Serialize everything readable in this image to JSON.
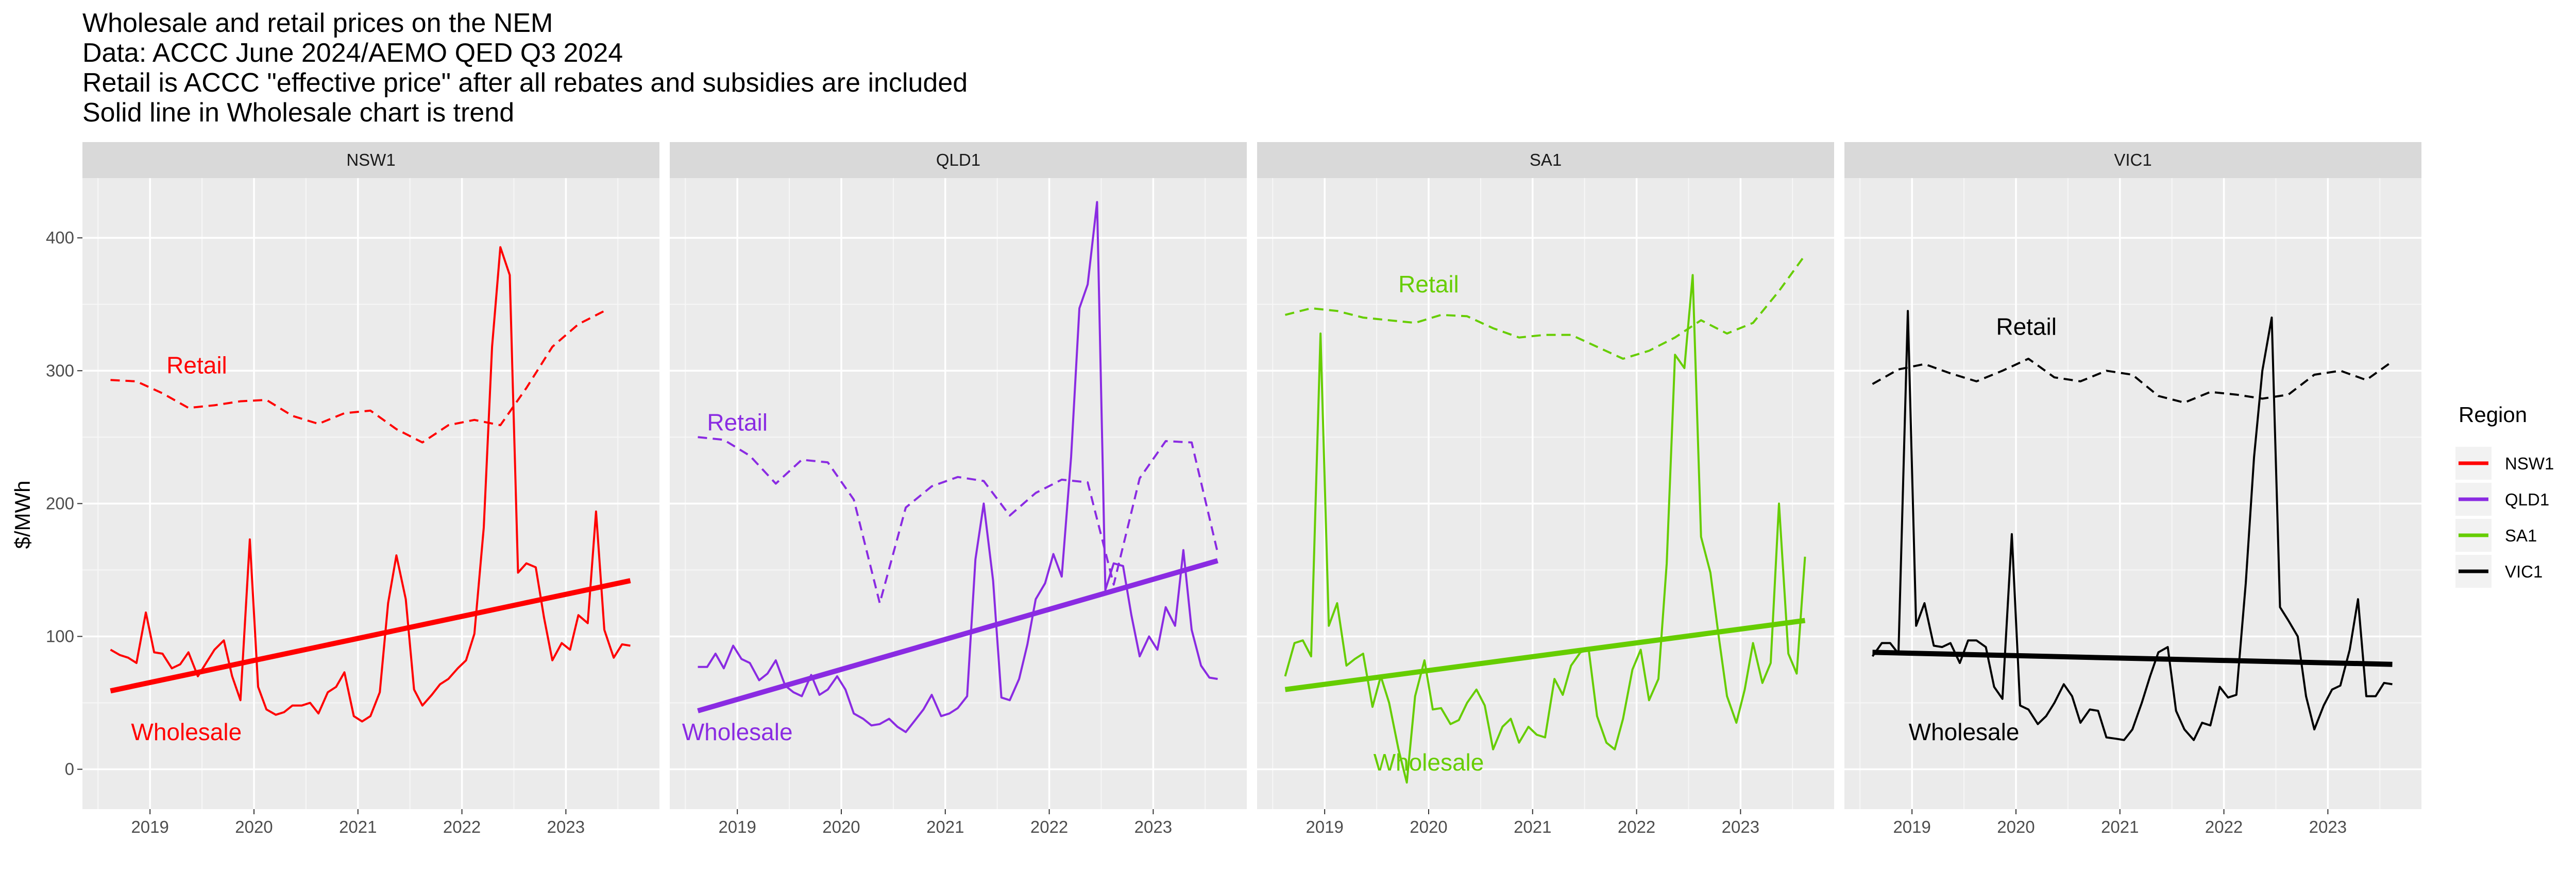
{
  "chart_data": {
    "type": "line",
    "title_lines": [
      "Wholesale and retail prices on the NEM",
      "Data: ACCC June 2024/AEMO QED Q3 2024",
      "Retail is ACCC \"effective price\" after all rebates and subsidies are included",
      "Solid line in Wholesale chart is trend"
    ],
    "ylabel": "$/MWh",
    "ylim": [
      -30,
      445
    ],
    "y_ticks": [
      0,
      100,
      200,
      300,
      400
    ],
    "xlim": [
      2018.35,
      2023.9
    ],
    "x_ticks": [
      2019,
      2020,
      2021,
      2022,
      2023
    ],
    "x_tick_labels": [
      "2019",
      "2020",
      "2021",
      "2022",
      "2023"
    ],
    "grid": true,
    "legend": {
      "title": "Region",
      "position": "right",
      "entries": [
        {
          "name": "NSW1",
          "color": "#ff0000"
        },
        {
          "name": "QLD1",
          "color": "#8a2be2"
        },
        {
          "name": "SA1",
          "color": "#66cd00"
        },
        {
          "name": "VIC1",
          "color": "#000000"
        }
      ]
    },
    "panels": [
      {
        "region": "NSW1",
        "color": "#ff0000",
        "labels": [
          {
            "text": "Retail",
            "x": 2019.45,
            "y": 298
          },
          {
            "text": "Wholesale",
            "x": 2019.35,
            "y": 22
          }
        ],
        "retail": {
          "x": [
            2018.62,
            2018.87,
            2019.12,
            2019.37,
            2019.62,
            2019.87,
            2020.12,
            2020.37,
            2020.62,
            2020.87,
            2021.12,
            2021.37,
            2021.62,
            2021.87,
            2022.12,
            2022.37,
            2022.62,
            2022.87,
            2023.12,
            2023.37
          ],
          "y": [
            293,
            292,
            283,
            272,
            274,
            277,
            278,
            266,
            260,
            268,
            270,
            256,
            246,
            259,
            263,
            259,
            287,
            318,
            335,
            345
          ]
        },
        "wholesale": {
          "x": [
            2018.62,
            2018.71,
            2018.79,
            2018.87,
            2018.96,
            2019.04,
            2019.12,
            2019.21,
            2019.29,
            2019.37,
            2019.46,
            2019.54,
            2019.62,
            2019.71,
            2019.79,
            2019.87,
            2019.96,
            2020.04,
            2020.12,
            2020.21,
            2020.29,
            2020.37,
            2020.46,
            2020.54,
            2020.62,
            2020.71,
            2020.79,
            2020.87,
            2020.96,
            2021.04,
            2021.12,
            2021.21,
            2021.29,
            2021.37,
            2021.46,
            2021.54,
            2021.62,
            2021.71,
            2021.79,
            2021.87,
            2021.96,
            2022.04,
            2022.12,
            2022.21,
            2022.29,
            2022.37,
            2022.46,
            2022.54,
            2022.62,
            2022.71,
            2022.79,
            2022.87,
            2022.96,
            2023.04,
            2023.12,
            2023.21,
            2023.29,
            2023.37,
            2023.46,
            2023.54,
            2023.62
          ],
          "y": [
            90,
            86,
            84,
            80,
            118,
            88,
            87,
            76,
            79,
            88,
            70,
            80,
            90,
            97,
            70,
            52,
            173,
            62,
            45,
            41,
            43,
            48,
            48,
            50,
            42,
            58,
            62,
            73,
            40,
            36,
            40,
            58,
            125,
            161,
            128,
            60,
            48,
            56,
            64,
            68,
            76,
            82,
            102,
            182,
            318,
            393,
            372,
            148,
            155,
            152,
            114,
            82,
            95,
            90,
            116,
            110,
            194,
            105,
            84,
            94,
            93
          ]
        },
        "trend": {
          "x": [
            2018.62,
            2023.62
          ],
          "y": [
            59,
            142
          ]
        }
      },
      {
        "region": "QLD1",
        "color": "#8a2be2",
        "labels": [
          {
            "text": "Retail",
            "x": 2019.0,
            "y": 255
          },
          {
            "text": "Wholesale",
            "x": 2019.0,
            "y": 22
          }
        ],
        "retail": {
          "x": [
            2018.62,
            2018.87,
            2019.12,
            2019.37,
            2019.62,
            2019.87,
            2020.12,
            2020.37,
            2020.62,
            2020.87,
            2021.12,
            2021.37,
            2021.62,
            2021.87,
            2022.12,
            2022.37,
            2022.62,
            2022.87,
            2023.12,
            2023.37,
            2023.62
          ],
          "y": [
            250,
            248,
            236,
            215,
            233,
            231,
            203,
            125,
            197,
            213,
            220,
            217,
            191,
            208,
            218,
            216,
            139,
            219,
            247,
            246,
            163
          ]
        },
        "wholesale": {
          "x": [
            2018.62,
            2018.71,
            2018.79,
            2018.87,
            2018.96,
            2019.04,
            2019.12,
            2019.21,
            2019.29,
            2019.37,
            2019.46,
            2019.54,
            2019.62,
            2019.71,
            2019.79,
            2019.87,
            2019.96,
            2020.04,
            2020.12,
            2020.21,
            2020.29,
            2020.37,
            2020.46,
            2020.54,
            2020.62,
            2020.71,
            2020.79,
            2020.87,
            2020.96,
            2021.04,
            2021.12,
            2021.21,
            2021.29,
            2021.37,
            2021.46,
            2021.54,
            2021.62,
            2021.71,
            2021.79,
            2021.87,
            2021.96,
            2022.04,
            2022.12,
            2022.21,
            2022.29,
            2022.37,
            2022.46,
            2022.54,
            2022.62,
            2022.71,
            2022.79,
            2022.87,
            2022.96,
            2023.04,
            2023.12,
            2023.21,
            2023.29,
            2023.37,
            2023.46,
            2023.54,
            2023.62
          ],
          "y": [
            77,
            77,
            87,
            76,
            93,
            83,
            80,
            67,
            72,
            82,
            63,
            58,
            55,
            71,
            56,
            60,
            70,
            60,
            42,
            38,
            33,
            34,
            38,
            32,
            28,
            37,
            45,
            56,
            40,
            42,
            46,
            55,
            158,
            200,
            142,
            54,
            52,
            68,
            94,
            128,
            140,
            162,
            145,
            235,
            347,
            365,
            427,
            135,
            155,
            153,
            116,
            85,
            100,
            90,
            122,
            108,
            165,
            105,
            78,
            69,
            68
          ]
        },
        "trend": {
          "x": [
            2018.62,
            2023.62
          ],
          "y": [
            44,
            157
          ]
        }
      },
      {
        "region": "SA1",
        "color": "#66cd00",
        "labels": [
          {
            "text": "Retail",
            "x": 2020.0,
            "y": 359
          },
          {
            "text": "Wholesale",
            "x": 2020.0,
            "y": -1
          }
        ],
        "retail": {
          "x": [
            2018.62,
            2018.87,
            2019.12,
            2019.37,
            2019.62,
            2019.87,
            2020.12,
            2020.37,
            2020.62,
            2020.87,
            2021.12,
            2021.37,
            2021.62,
            2021.87,
            2022.12,
            2022.37,
            2022.62,
            2022.87,
            2023.12,
            2023.37,
            2023.62
          ],
          "y": [
            342,
            347,
            345,
            340,
            338,
            336,
            342,
            341,
            332,
            325,
            327,
            327,
            318,
            309,
            315,
            325,
            338,
            328,
            336,
            360,
            387
          ]
        },
        "wholesale": {
          "x": [
            2018.62,
            2018.71,
            2018.79,
            2018.87,
            2018.96,
            2019.04,
            2019.12,
            2019.21,
            2019.29,
            2019.37,
            2019.46,
            2019.54,
            2019.62,
            2019.71,
            2019.79,
            2019.87,
            2019.96,
            2020.04,
            2020.12,
            2020.21,
            2020.29,
            2020.37,
            2020.46,
            2020.54,
            2020.62,
            2020.71,
            2020.79,
            2020.87,
            2020.96,
            2021.04,
            2021.12,
            2021.21,
            2021.29,
            2021.37,
            2021.46,
            2021.54,
            2021.62,
            2021.71,
            2021.79,
            2021.87,
            2021.96,
            2022.04,
            2022.12,
            2022.21,
            2022.29,
            2022.37,
            2022.46,
            2022.54,
            2022.62,
            2022.71,
            2022.79,
            2022.87,
            2022.96,
            2023.04,
            2023.12,
            2023.21,
            2023.29,
            2023.37,
            2023.46,
            2023.54,
            2023.62
          ],
          "y": [
            70,
            95,
            97,
            85,
            328,
            108,
            125,
            78,
            83,
            87,
            47,
            70,
            50,
            15,
            -10,
            55,
            82,
            45,
            46,
            34,
            37,
            50,
            60,
            48,
            15,
            32,
            38,
            20,
            32,
            26,
            24,
            68,
            56,
            78,
            88,
            90,
            40,
            20,
            15,
            38,
            75,
            90,
            52,
            68,
            155,
            312,
            302,
            372,
            175,
            148,
            100,
            55,
            35,
            60,
            95,
            65,
            80,
            200,
            87,
            72,
            160
          ]
        },
        "trend": {
          "x": [
            2018.62,
            2023.62
          ],
          "y": [
            60,
            112
          ]
        }
      },
      {
        "region": "VIC1",
        "color": "#000000",
        "labels": [
          {
            "text": "Retail",
            "x": 2020.1,
            "y": 327
          },
          {
            "text": "Wholesale",
            "x": 2019.5,
            "y": 22
          }
        ],
        "retail": {
          "x": [
            2018.62,
            2018.87,
            2019.12,
            2019.37,
            2019.62,
            2019.87,
            2020.12,
            2020.37,
            2020.62,
            2020.87,
            2021.12,
            2021.37,
            2021.62,
            2021.87,
            2022.12,
            2022.37,
            2022.62,
            2022.87,
            2023.12,
            2023.37,
            2023.62
          ],
          "y": [
            290,
            301,
            305,
            298,
            292,
            300,
            309,
            295,
            292,
            300,
            297,
            281,
            276,
            284,
            282,
            279,
            282,
            297,
            300,
            293,
            307
          ]
        },
        "wholesale": {
          "x": [
            2018.62,
            2018.71,
            2018.79,
            2018.87,
            2018.96,
            2019.04,
            2019.12,
            2019.21,
            2019.29,
            2019.37,
            2019.46,
            2019.54,
            2019.62,
            2019.71,
            2019.79,
            2019.87,
            2019.96,
            2020.04,
            2020.12,
            2020.21,
            2020.29,
            2020.37,
            2020.46,
            2020.54,
            2020.62,
            2020.71,
            2020.79,
            2020.87,
            2020.96,
            2021.04,
            2021.12,
            2021.21,
            2021.29,
            2021.37,
            2021.46,
            2021.54,
            2021.62,
            2021.71,
            2021.79,
            2021.87,
            2021.96,
            2022.04,
            2022.12,
            2022.21,
            2022.29,
            2022.37,
            2022.46,
            2022.54,
            2022.62,
            2022.71,
            2022.79,
            2022.87,
            2022.96,
            2023.04,
            2023.12,
            2023.21,
            2023.29,
            2023.37,
            2023.46,
            2023.54,
            2023.62
          ],
          "y": [
            85,
            95,
            95,
            87,
            345,
            108,
            125,
            93,
            92,
            95,
            80,
            97,
            97,
            92,
            62,
            53,
            177,
            48,
            45,
            34,
            40,
            50,
            64,
            55,
            35,
            45,
            44,
            24,
            23,
            22,
            30,
            50,
            70,
            88,
            92,
            44,
            30,
            22,
            35,
            33,
            62,
            54,
            56,
            140,
            235,
            300,
            340,
            122,
            112,
            100,
            55,
            30,
            48,
            60,
            63,
            90,
            128,
            55,
            55,
            65,
            64
          ]
        },
        "trend": {
          "x": [
            2018.62,
            2023.62
          ],
          "y": [
            88,
            79
          ]
        }
      }
    ]
  }
}
